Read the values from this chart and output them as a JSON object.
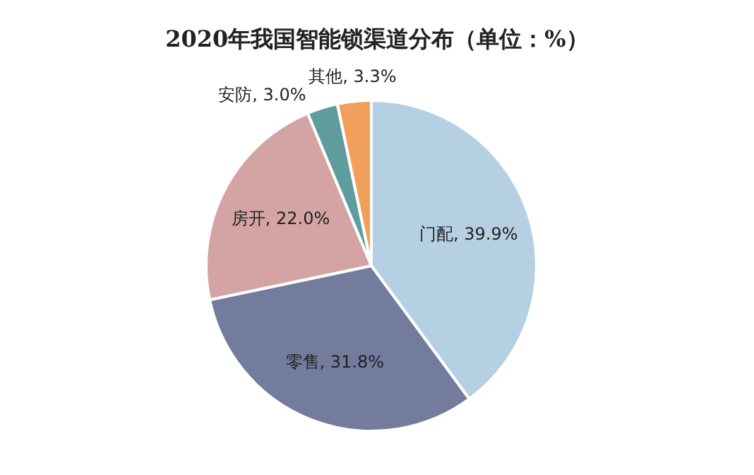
{
  "chart_data": {
    "type": "pie",
    "title": "2020年我国智能锁渠道分布（单位：%）",
    "categories": [
      "门配",
      "零售",
      "房开",
      "安防",
      "其他"
    ],
    "values": [
      39.9,
      31.8,
      22.0,
      3.0,
      3.3
    ],
    "value_labels": [
      "39.9%",
      "31.8%",
      "22.0%",
      "3.0%",
      "3.3%"
    ],
    "colors": [
      "#b5d0e2",
      "#737c9d",
      "#d4a4a4",
      "#5e9c9e",
      "#f0a05a"
    ]
  }
}
